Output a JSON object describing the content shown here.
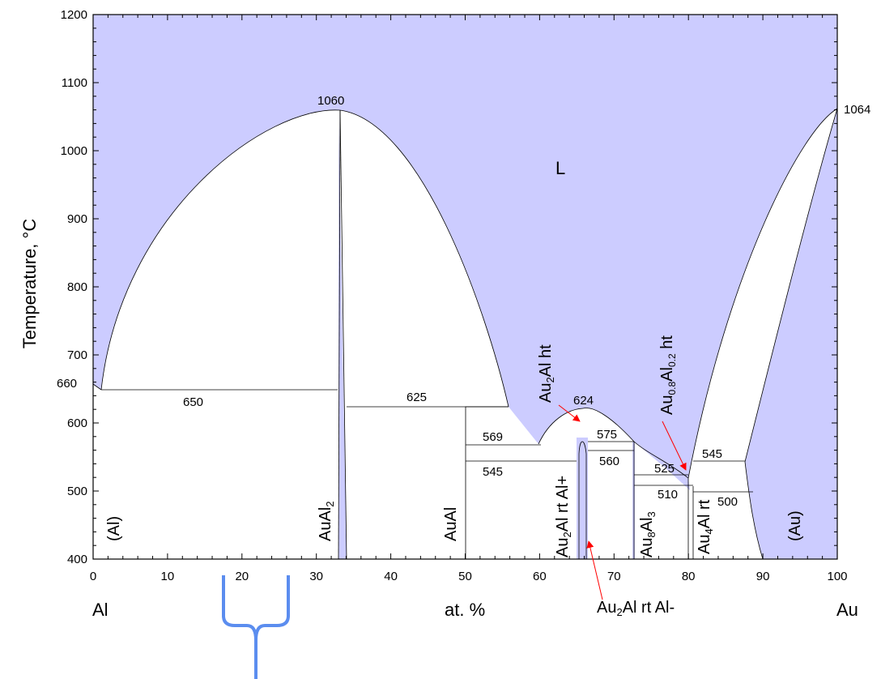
{
  "chart": {
    "y_axis_label": "Temperature, °C",
    "x_axis_label": "at. %",
    "left_element": "Al",
    "right_element": "Au",
    "x_ticks": [
      "0",
      "10",
      "20",
      "30",
      "40",
      "50",
      "60",
      "70",
      "80",
      "90",
      "100"
    ],
    "y_ticks": [
      "400",
      "500",
      "600",
      "700",
      "800",
      "900",
      "1000",
      "1100",
      "1200"
    ]
  },
  "annotations": {
    "t660": "660",
    "t1060": "1060",
    "t1064": "1064",
    "t650": "650",
    "t625": "625",
    "t624": "624",
    "t569": "569",
    "t545a": "545",
    "t575": "575",
    "t560": "560",
    "t525": "525",
    "t510": "510",
    "t545b": "545",
    "t500": "500",
    "liquid": "L"
  },
  "phases": {
    "al": "(Al)",
    "aual2_base": "AuAl",
    "aual2_sub": "2",
    "aual": "AuAl",
    "au2al_rt_plus_a": "Au",
    "au2al_rt_plus_sub": "2",
    "au2al_rt_plus_b": "Al rt Al+",
    "au2al_ht_a": "Au",
    "au2al_ht_sub": "2",
    "au2al_ht_b": "Al ht",
    "au8al3_a": "Au",
    "au8al3_sub1": "8",
    "au8al3_b": "Al",
    "au8al3_sub2": "3",
    "au4al_a": "Au",
    "au4al_sub": "4",
    "au4al_b": "Al rt",
    "au08al02_a": "Au",
    "au08al02_sub1": "0.8",
    "au08al02_b": "Al",
    "au08al02_sub2": "0.2",
    "au08al02_c": " ht",
    "au": "(Au)",
    "au2al_rt_minus_a": "Au",
    "au2al_rt_minus_sub": "2",
    "au2al_rt_minus_b": "Al rt Al-"
  },
  "chart_data": {
    "type": "phase-diagram",
    "x_label": "at. %",
    "y_label": "Temperature, °C",
    "x_range": [
      0,
      100
    ],
    "y_range": [
      400,
      1200
    ],
    "components": [
      "Al",
      "Au"
    ],
    "melting_points": [
      {
        "component": "Al",
        "T": 660
      },
      {
        "component": "Au",
        "T": 1064
      }
    ],
    "congruent_points": [
      {
        "phase": "AuAl2",
        "x": 33.3,
        "T": 1060
      },
      {
        "phase": "Au2Al ht",
        "x": 65.5,
        "T": 624
      }
    ],
    "invariant_lines": [
      {
        "T": 650,
        "x": [
          1,
          33
        ]
      },
      {
        "T": 625,
        "x": [
          34,
          56
        ]
      },
      {
        "T": 569,
        "x": [
          50,
          64
        ]
      },
      {
        "T": 545,
        "x": [
          50,
          65
        ]
      },
      {
        "T": 575,
        "x": [
          67,
          73
        ]
      },
      {
        "T": 560,
        "x": [
          67,
          73
        ]
      },
      {
        "T": 525,
        "x": [
          73,
          80.5
        ]
      },
      {
        "T": 510,
        "x": [
          73,
          80.5
        ]
      },
      {
        "T": 545,
        "x": [
          81,
          87.5
        ]
      },
      {
        "T": 500,
        "x": [
          81,
          89.5
        ]
      }
    ],
    "phase_labels": [
      "L",
      "(Al)",
      "AuAl2",
      "AuAl",
      "Au2Al rt Al+",
      "Au2Al ht",
      "Au8Al3",
      "Au4Al rt",
      "Au0.8Al0.2 ht",
      "(Au)",
      "Au2Al rt Al-"
    ],
    "colors": {
      "liquid_fill": "#ccccff",
      "arrow": "#ff0000",
      "brace": "#5b8def"
    }
  }
}
